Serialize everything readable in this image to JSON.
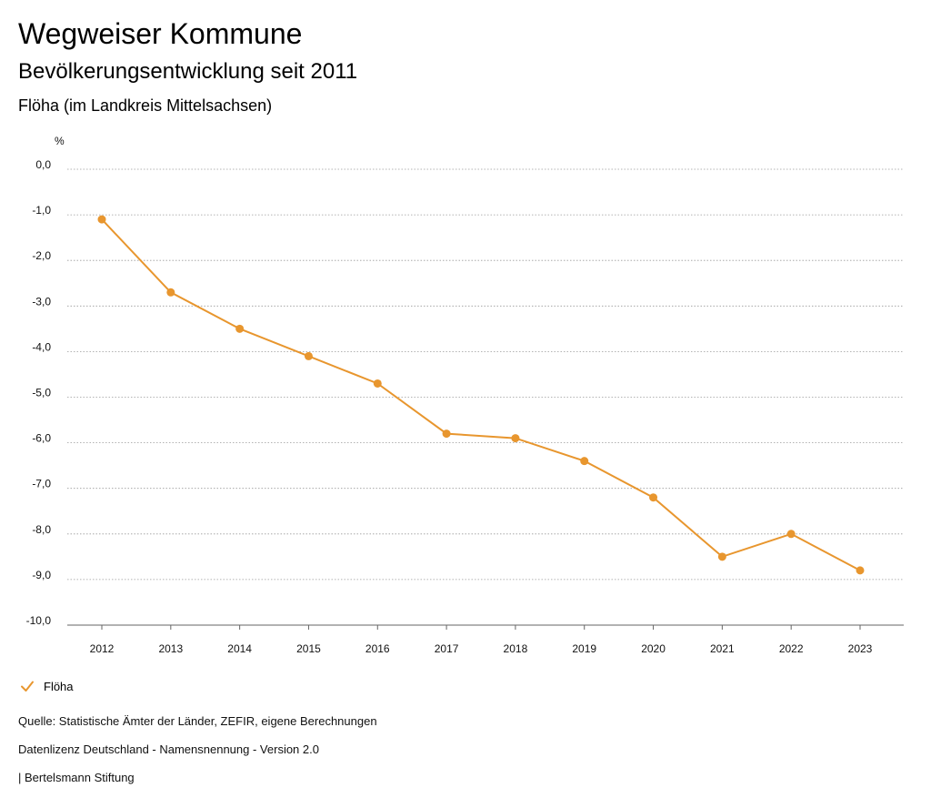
{
  "header": {
    "title": "Wegweiser Kommune",
    "subtitle": "Bevölkerungsentwicklung seit 2011",
    "place": "Flöha (im Landkreis Mittelsachsen)"
  },
  "colors": {
    "series": "#e8962e",
    "grid": "#9a9a9a",
    "text": "#111111"
  },
  "chart_data": {
    "type": "line",
    "title": "Bevölkerungsentwicklung seit 2011",
    "xlabel": "",
    "ylabel": "%",
    "x": [
      "2012",
      "2013",
      "2014",
      "2015",
      "2016",
      "2017",
      "2018",
      "2019",
      "2020",
      "2021",
      "2022",
      "2023"
    ],
    "y_ticks": [
      "0,0",
      "-1,0",
      "-2,0",
      "-3,0",
      "-4,0",
      "-5,0",
      "-6,0",
      "-7,0",
      "-8,0",
      "-9,0",
      "-10,0"
    ],
    "ylim": [
      -10,
      0
    ],
    "grid": true,
    "series": [
      {
        "name": "Flöha",
        "values": [
          -1.1,
          -2.7,
          -3.5,
          -4.1,
          -4.7,
          -5.8,
          -5.9,
          -6.4,
          -7.2,
          -8.5,
          -8.0,
          -8.8
        ]
      }
    ],
    "legend_position": "bottom-left"
  },
  "legend": {
    "label": "Flöha",
    "icon": "checkmark-icon"
  },
  "footer": {
    "source": "Quelle: Statistische Ämter der Länder, ZEFIR, eigene Berechnungen",
    "license": "Datenlizenz Deutschland - Namensnennung - Version 2.0",
    "publisher": "| Bertelsmann Stiftung"
  }
}
